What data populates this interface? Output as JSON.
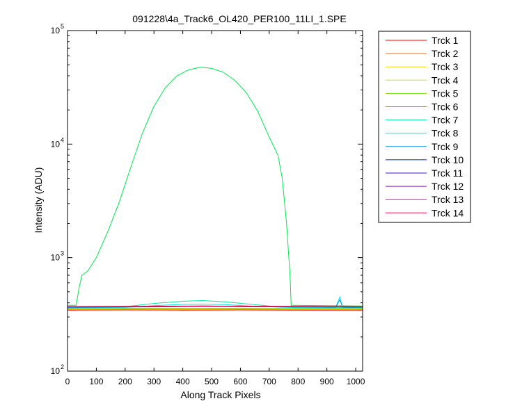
{
  "chart_data": {
    "type": "line",
    "title": "091228\\4a_Track6_OL420_PER100_11LI_1.SPE",
    "xlabel": "Along Track Pixels",
    "ylabel": "Intensity (ADU)",
    "xlim": [
      0,
      1024
    ],
    "ylim": [
      100,
      100000
    ],
    "yscale": "log",
    "x_ticks": [
      0,
      100,
      200,
      300,
      400,
      500,
      600,
      700,
      800,
      900,
      1000
    ],
    "y_ticks": [
      {
        "value": 100,
        "base": "10",
        "exp": "2"
      },
      {
        "value": 1000,
        "base": "10",
        "exp": "3"
      },
      {
        "value": 10000,
        "base": "10",
        "exp": "4"
      },
      {
        "value": 100000,
        "base": "10",
        "exp": "5"
      }
    ],
    "legend_position": "outside-right",
    "grid": false,
    "series": [
      {
        "name": "Trck 1",
        "color": "#ff0000",
        "points": [
          [
            0,
            345
          ],
          [
            200,
            346
          ],
          [
            400,
            345
          ],
          [
            600,
            346
          ],
          [
            800,
            345
          ],
          [
            1024,
            345
          ]
        ]
      },
      {
        "name": "Trck 2",
        "color": "#ff6a00",
        "points": [
          [
            0,
            348
          ],
          [
            200,
            349
          ],
          [
            400,
            348
          ],
          [
            600,
            349
          ],
          [
            800,
            348
          ],
          [
            1024,
            348
          ]
        ]
      },
      {
        "name": "Trck 3",
        "color": "#ffd400",
        "points": [
          [
            0,
            351
          ],
          [
            200,
            352
          ],
          [
            400,
            351
          ],
          [
            600,
            352
          ],
          [
            800,
            351
          ],
          [
            1024,
            351
          ]
        ]
      },
      {
        "name": "Trck 4",
        "color": "#c8e600",
        "points": [
          [
            0,
            354
          ],
          [
            200,
            355
          ],
          [
            400,
            355
          ],
          [
            600,
            355
          ],
          [
            800,
            354
          ],
          [
            1024,
            354
          ]
        ]
      },
      {
        "name": "Trck 5",
        "color": "#66e600",
        "points": [
          [
            0,
            357
          ],
          [
            200,
            358
          ],
          [
            400,
            358
          ],
          [
            600,
            358
          ],
          [
            800,
            357
          ],
          [
            1024,
            357
          ]
        ]
      },
      {
        "name": "Trck 6",
        "color": "#00e64d",
        "points": [
          [
            0,
            380
          ],
          [
            30,
            380
          ],
          [
            40,
            540
          ],
          [
            50,
            700
          ],
          [
            70,
            760
          ],
          [
            100,
            1000
          ],
          [
            140,
            1700
          ],
          [
            180,
            3100
          ],
          [
            220,
            6300
          ],
          [
            260,
            12500
          ],
          [
            300,
            21500
          ],
          [
            340,
            31500
          ],
          [
            380,
            40000
          ],
          [
            420,
            45000
          ],
          [
            460,
            47500
          ],
          [
            500,
            46500
          ],
          [
            540,
            43000
          ],
          [
            580,
            36500
          ],
          [
            620,
            28500
          ],
          [
            660,
            19500
          ],
          [
            700,
            11500
          ],
          [
            730,
            8000
          ],
          [
            745,
            5000
          ],
          [
            760,
            2000
          ],
          [
            772,
            700
          ],
          [
            776,
            380
          ],
          [
            1024,
            375
          ]
        ]
      },
      {
        "name": "Trck 7",
        "color": "#00e6a0",
        "points": [
          [
            0,
            360
          ],
          [
            50,
            362
          ],
          [
            100,
            362
          ],
          [
            200,
            370
          ],
          [
            300,
            395
          ],
          [
            400,
            413
          ],
          [
            470,
            418
          ],
          [
            550,
            407
          ],
          [
            650,
            385
          ],
          [
            750,
            366
          ],
          [
            800,
            362
          ],
          [
            1024,
            361
          ]
        ]
      },
      {
        "name": "Trck 8",
        "color": "#00e6e6",
        "points": [
          [
            0,
            362
          ],
          [
            200,
            364
          ],
          [
            300,
            378
          ],
          [
            400,
            387
          ],
          [
            470,
            390
          ],
          [
            550,
            385
          ],
          [
            650,
            373
          ],
          [
            750,
            365
          ],
          [
            930,
            364
          ],
          [
            945,
            450
          ],
          [
            952,
            380
          ],
          [
            960,
            364
          ],
          [
            1024,
            364
          ]
        ]
      },
      {
        "name": "Trck 9",
        "color": "#0096e6",
        "points": [
          [
            0,
            365
          ],
          [
            300,
            368
          ],
          [
            470,
            372
          ],
          [
            650,
            369
          ],
          [
            930,
            366
          ],
          [
            945,
            425
          ],
          [
            955,
            366
          ],
          [
            1024,
            366
          ]
        ]
      },
      {
        "name": "Trck 10",
        "color": "#0a28c8",
        "points": [
          [
            0,
            367
          ],
          [
            300,
            369
          ],
          [
            470,
            373
          ],
          [
            650,
            370
          ],
          [
            1024,
            367
          ]
        ]
      },
      {
        "name": "Trck 11",
        "color": "#3c14b4",
        "points": [
          [
            0,
            368
          ],
          [
            300,
            370
          ],
          [
            470,
            372
          ],
          [
            650,
            370
          ],
          [
            1024,
            368
          ]
        ]
      },
      {
        "name": "Trck 12",
        "color": "#8c14c8",
        "points": [
          [
            0,
            369
          ],
          [
            300,
            371
          ],
          [
            470,
            374
          ],
          [
            650,
            371
          ],
          [
            1024,
            369
          ]
        ]
      },
      {
        "name": "Trck 13",
        "color": "#c814b4",
        "points": [
          [
            0,
            370
          ],
          [
            300,
            372
          ],
          [
            470,
            374
          ],
          [
            650,
            372
          ],
          [
            1024,
            370
          ]
        ]
      },
      {
        "name": "Trck 14",
        "color": "#e6144b",
        "points": [
          [
            0,
            371
          ],
          [
            300,
            373
          ],
          [
            470,
            375
          ],
          [
            650,
            373
          ],
          [
            1024,
            371
          ]
        ]
      }
    ]
  }
}
